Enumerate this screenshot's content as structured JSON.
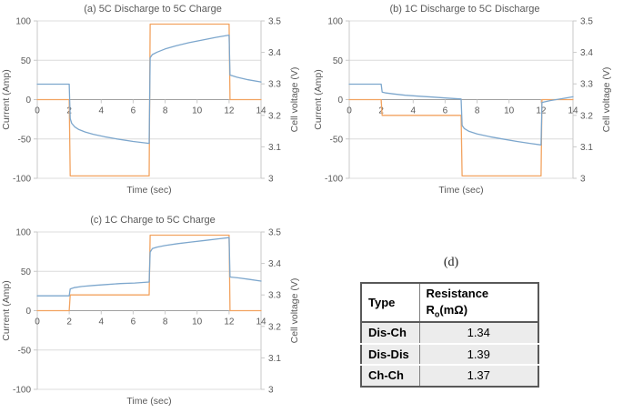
{
  "chart_data": [
    {
      "type": "line",
      "panel": "a",
      "title": "(a) 5C Discharge to 5C Charge",
      "xlabel": "Time (sec)",
      "ylabel_left": "Current (Amp)",
      "ylabel_right": "Cell voltage (V)",
      "xlim": [
        0,
        14
      ],
      "x_ticks": [
        0,
        2,
        4,
        6,
        8,
        10,
        12,
        14
      ],
      "left_lim": [
        -100,
        100
      ],
      "left_ticks": [
        100,
        50,
        0,
        -50,
        -100
      ],
      "right_lim": [
        3,
        3.5
      ],
      "right_ticks": [
        3.5,
        3.4,
        3.3,
        3.2,
        3.1,
        3
      ],
      "grid": true,
      "legend": "none",
      "series": [
        {
          "name": "current",
          "axis": "left",
          "color": "#f2a360",
          "points": [
            [
              0,
              0
            ],
            [
              2,
              0
            ],
            [
              2.06,
              -97
            ],
            [
              7,
              -97
            ],
            [
              7.06,
              96
            ],
            [
              12,
              96
            ],
            [
              12.06,
              0
            ],
            [
              14,
              0
            ]
          ]
        },
        {
          "name": "voltage",
          "axis": "right",
          "color": "#7da7cd",
          "points": [
            [
              0,
              3.299
            ],
            [
              2,
              3.299
            ],
            [
              2.06,
              3.19
            ],
            [
              2.15,
              3.175
            ],
            [
              2.35,
              3.163
            ],
            [
              2.6,
              3.155
            ],
            [
              3.0,
              3.147
            ],
            [
              3.5,
              3.14
            ],
            [
              4.2,
              3.132
            ],
            [
              5,
              3.125
            ],
            [
              6,
              3.117
            ],
            [
              7,
              3.111
            ],
            [
              7.06,
              3.383
            ],
            [
              7.2,
              3.393
            ],
            [
              7.5,
              3.401
            ],
            [
              8,
              3.411
            ],
            [
              8.7,
              3.421
            ],
            [
              9.5,
              3.431
            ],
            [
              10.3,
              3.439
            ],
            [
              11.2,
              3.448
            ],
            [
              12,
              3.455
            ],
            [
              12.06,
              3.328
            ],
            [
              12.5,
              3.321
            ],
            [
              13.2,
              3.313
            ],
            [
              14,
              3.306
            ]
          ]
        }
      ]
    },
    {
      "type": "line",
      "panel": "b",
      "title": "(b) 1C Discharge to 5C Discharge",
      "xlabel": "Time (sec)",
      "ylabel_left": "Current (Amp)",
      "ylabel_right": "Cell voltage (V)",
      "xlim": [
        0,
        14
      ],
      "x_ticks": [
        0,
        2,
        4,
        6,
        8,
        10,
        12,
        14
      ],
      "left_lim": [
        -100,
        100
      ],
      "left_ticks": [
        100,
        50,
        0,
        -50,
        -100
      ],
      "right_lim": [
        3,
        3.5
      ],
      "right_ticks": [
        3.5,
        3.4,
        3.3,
        3.2,
        3.1,
        3
      ],
      "grid": true,
      "legend": "none",
      "series": [
        {
          "name": "current",
          "axis": "left",
          "color": "#f2a360",
          "points": [
            [
              0,
              0
            ],
            [
              2,
              0
            ],
            [
              2.06,
              -20
            ],
            [
              7,
              -20
            ],
            [
              7.06,
              -97
            ],
            [
              12,
              -97
            ],
            [
              12.06,
              0
            ],
            [
              14,
              0
            ]
          ]
        },
        {
          "name": "voltage",
          "axis": "right",
          "color": "#7da7cd",
          "points": [
            [
              0,
              3.299
            ],
            [
              2,
              3.299
            ],
            [
              2.06,
              3.274
            ],
            [
              2.3,
              3.271
            ],
            [
              2.8,
              3.268
            ],
            [
              3.5,
              3.264
            ],
            [
              4.3,
              3.261
            ],
            [
              5.2,
              3.258
            ],
            [
              6.1,
              3.255
            ],
            [
              7,
              3.252
            ],
            [
              7.06,
              3.168
            ],
            [
              7.2,
              3.158
            ],
            [
              7.5,
              3.149
            ],
            [
              8,
              3.141
            ],
            [
              8.8,
              3.132
            ],
            [
              9.6,
              3.125
            ],
            [
              10.5,
              3.117
            ],
            [
              11.3,
              3.111
            ],
            [
              12,
              3.106
            ],
            [
              12.06,
              3.241
            ],
            [
              12.6,
              3.247
            ],
            [
              13.3,
              3.253
            ],
            [
              14,
              3.259
            ]
          ]
        }
      ]
    },
    {
      "type": "line",
      "panel": "c",
      "title": "(c) 1C Charge to 5C Charge",
      "xlabel": "Time (sec)",
      "ylabel_left": "Current (Amp)",
      "ylabel_right": "Cell voltage (V)",
      "xlim": [
        0,
        14
      ],
      "x_ticks": [
        0,
        2,
        4,
        6,
        8,
        10,
        12,
        14
      ],
      "left_lim": [
        -100,
        100
      ],
      "left_ticks": [
        100,
        50,
        0,
        -50,
        -100
      ],
      "right_lim": [
        3,
        3.5
      ],
      "right_ticks": [
        3.5,
        3.4,
        3.3,
        3.2,
        3.1,
        3
      ],
      "grid": true,
      "legend": "none",
      "series": [
        {
          "name": "current",
          "axis": "left",
          "color": "#f2a360",
          "points": [
            [
              0,
              0
            ],
            [
              2,
              0
            ],
            [
              2.06,
              20
            ],
            [
              7,
              20
            ],
            [
              7.06,
              96
            ],
            [
              12,
              96
            ],
            [
              12.06,
              0
            ],
            [
              14,
              0
            ]
          ]
        },
        {
          "name": "voltage",
          "axis": "right",
          "color": "#7da7cd",
          "points": [
            [
              0,
              3.297
            ],
            [
              2,
              3.297
            ],
            [
              2.06,
              3.319
            ],
            [
              2.3,
              3.323
            ],
            [
              2.8,
              3.327
            ],
            [
              3.5,
              3.33
            ],
            [
              4.3,
              3.333
            ],
            [
              5.2,
              3.336
            ],
            [
              6.1,
              3.338
            ],
            [
              7,
              3.341
            ],
            [
              7.06,
              3.436
            ],
            [
              7.2,
              3.447
            ],
            [
              7.5,
              3.452
            ],
            [
              8,
              3.457
            ],
            [
              8.8,
              3.463
            ],
            [
              9.6,
              3.468
            ],
            [
              10.5,
              3.473
            ],
            [
              11.3,
              3.478
            ],
            [
              12,
              3.482
            ],
            [
              12.06,
              3.357
            ],
            [
              12.6,
              3.354
            ],
            [
              13.3,
              3.349
            ],
            [
              14,
              3.344
            ]
          ]
        }
      ]
    },
    {
      "type": "table",
      "panel": "d",
      "caption": "(d)",
      "col_type": "Type",
      "col_resistance": {
        "pre": "Resistance R",
        "sub": "o",
        "post": "(mΩ)"
      },
      "rows": [
        [
          "Dis-Ch",
          "1.34"
        ],
        [
          "Dis-Dis",
          "1.39"
        ],
        [
          "Ch-Ch",
          "1.37"
        ]
      ]
    }
  ],
  "style": {
    "text_color": "#595959",
    "grid_color": "#dcdcdc",
    "axis_color": "#c8c8c8",
    "zero_line_color": "#a0a0a0",
    "current_color": "#f2a360",
    "voltage_color": "#7da7cd"
  }
}
